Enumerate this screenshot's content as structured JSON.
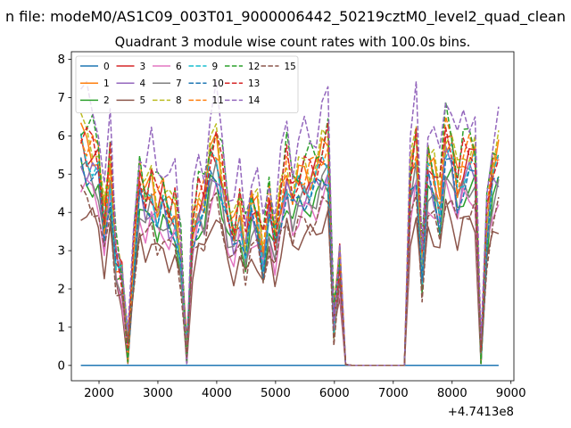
{
  "suptitle": "n file: modeM0/AS1C09_003T01_9000006442_50219cztM0_level2_quad_clean",
  "chart_data": {
    "type": "line",
    "title": "Quadrant 3 module wise count rates with 100.0s bins.",
    "xlabel": "",
    "ylabel": "",
    "x_offset_label": "+4.7413e8",
    "xlim": [
      1530,
      9050
    ],
    "ylim": [
      -0.4,
      8.2
    ],
    "xticks": [
      2000,
      3000,
      4000,
      5000,
      6000,
      7000,
      8000,
      9000
    ],
    "yticks": [
      0,
      1,
      2,
      3,
      4,
      5,
      6,
      7,
      8
    ],
    "grid": false,
    "legend": {
      "position": "top-left",
      "columns": 6
    },
    "x": [
      1690,
      1790,
      1890,
      1990,
      2090,
      2190,
      2290,
      2390,
      2490,
      2590,
      2690,
      2790,
      2890,
      2990,
      3090,
      3190,
      3290,
      3390,
      3490,
      3590,
      3690,
      3790,
      3890,
      3990,
      4090,
      4190,
      4290,
      4390,
      4490,
      4590,
      4690,
      4790,
      4890,
      4990,
      5090,
      5190,
      5290,
      5390,
      5490,
      5590,
      5690,
      5790,
      5890,
      5990,
      6090,
      6190,
      6290,
      7190,
      7290,
      7390,
      7490,
      7590,
      7690,
      7790,
      7890,
      7990,
      8090,
      8190,
      8290,
      8390,
      8490,
      8590,
      8690,
      8790
    ],
    "base_profile": [
      4.8,
      4.6,
      4.5,
      4.3,
      3.0,
      4.2,
      2.3,
      1.9,
      0.3,
      2.3,
      3.9,
      3.5,
      3.8,
      3.4,
      3.6,
      3.2,
      3.3,
      2.4,
      0.2,
      2.9,
      3.5,
      3.5,
      4.4,
      4.6,
      4.0,
      3.2,
      2.8,
      3.3,
      2.6,
      3.4,
      3.2,
      2.4,
      3.4,
      2.7,
      3.5,
      4.2,
      3.6,
      3.9,
      4.0,
      4.0,
      4.1,
      4.4,
      4.6,
      0.9,
      2.3,
      0.02,
      0.0,
      0.0,
      4.0,
      4.6,
      2.1,
      4.3,
      4.0,
      3.5,
      4.8,
      4.6,
      3.8,
      4.3,
      4.4,
      4.4,
      0.1,
      3.0,
      4.1,
      4.4
    ],
    "series": [
      {
        "name": "0",
        "color": "#1f77b4",
        "dashed": false,
        "scale": 0.0
      },
      {
        "name": "1",
        "color": "#ff7f0e",
        "dashed": false,
        "scale": 1.25
      },
      {
        "name": "2",
        "color": "#2ca02c",
        "dashed": false,
        "scale": 1.05
      },
      {
        "name": "3",
        "color": "#d62728",
        "dashed": false,
        "scale": 1.22
      },
      {
        "name": "4",
        "color": "#9467bd",
        "dashed": false,
        "scale": 1.12
      },
      {
        "name": "5",
        "color": "#8c564b",
        "dashed": false,
        "scale": 0.85
      },
      {
        "name": "6",
        "color": "#e377c2",
        "dashed": false,
        "scale": 1.0
      },
      {
        "name": "7",
        "color": "#7f7f7f",
        "dashed": false,
        "scale": 1.08
      },
      {
        "name": "8",
        "color": "#bcbd22",
        "dashed": true,
        "scale": 1.3
      },
      {
        "name": "9",
        "color": "#17becf",
        "dashed": true,
        "scale": 1.18
      },
      {
        "name": "10",
        "color": "#1f77b4",
        "dashed": true,
        "scale": 1.1
      },
      {
        "name": "11",
        "color": "#ff7f0e",
        "dashed": true,
        "scale": 1.27
      },
      {
        "name": "12",
        "color": "#2ca02c",
        "dashed": true,
        "scale": 1.35
      },
      {
        "name": "13",
        "color": "#d62728",
        "dashed": true,
        "scale": 1.28
      },
      {
        "name": "14",
        "color": "#9467bd",
        "dashed": true,
        "scale": 1.5
      },
      {
        "name": "15",
        "color": "#8c564b",
        "dashed": true,
        "scale": 0.93
      }
    ]
  }
}
